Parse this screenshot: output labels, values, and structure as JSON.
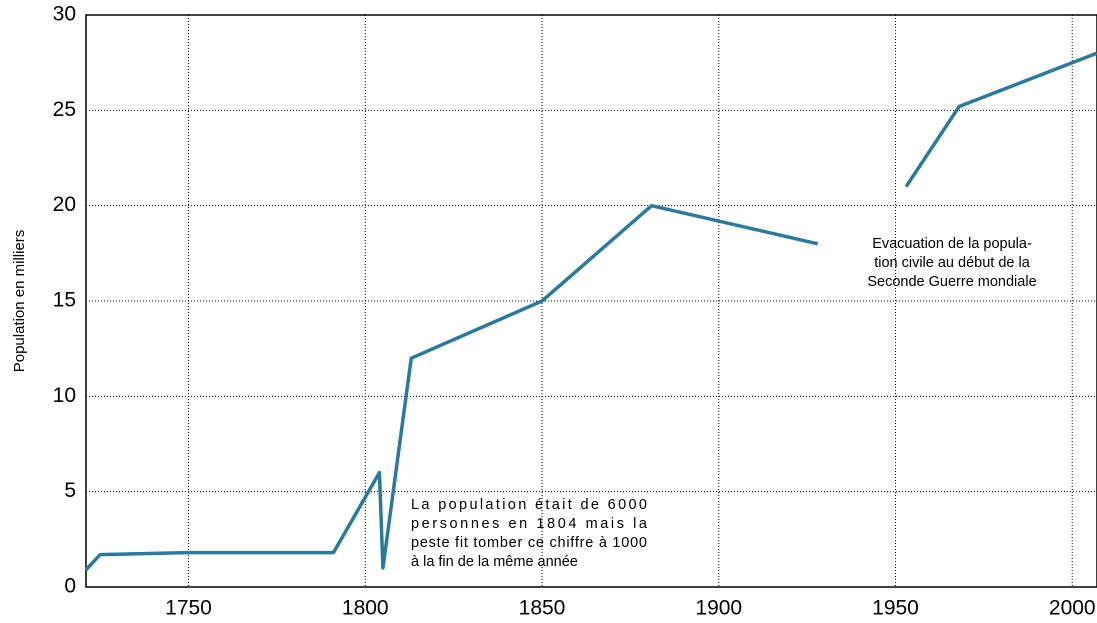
{
  "chart_data": {
    "type": "line",
    "y_label": "Population en milliers",
    "x": [
      1721,
      1725,
      1750,
      1791,
      1804,
      1805,
      1813,
      1850,
      1881,
      1928,
      1940,
      1953,
      1968,
      2007
    ],
    "series": [
      {
        "name": "Population",
        "color": "#2a7b9b",
        "values": [
          0.9,
          1.7,
          1.8,
          1.8,
          6,
          1,
          12,
          15,
          20,
          18,
          null,
          21,
          25.2,
          28
        ]
      }
    ],
    "xlim": [
      1721,
      2007
    ],
    "ylim": [
      0,
      30
    ],
    "xticks": [
      1750,
      1800,
      1850,
      1900,
      1950,
      2000
    ],
    "yticks": [
      0,
      5,
      10,
      15,
      20,
      25,
      30
    ],
    "grid": true,
    "annotations": [
      {
        "lines": [
          "La population était de 6000",
          "personnes en 1804 mais la",
          "peste fit tomber ce chiffre à 1000",
          "à la fin de la même année"
        ]
      },
      {
        "lines": [
          "Evacuation de la popula-",
          "tion civile au début de la",
          "Seconde Guerre mondiale"
        ]
      }
    ]
  }
}
